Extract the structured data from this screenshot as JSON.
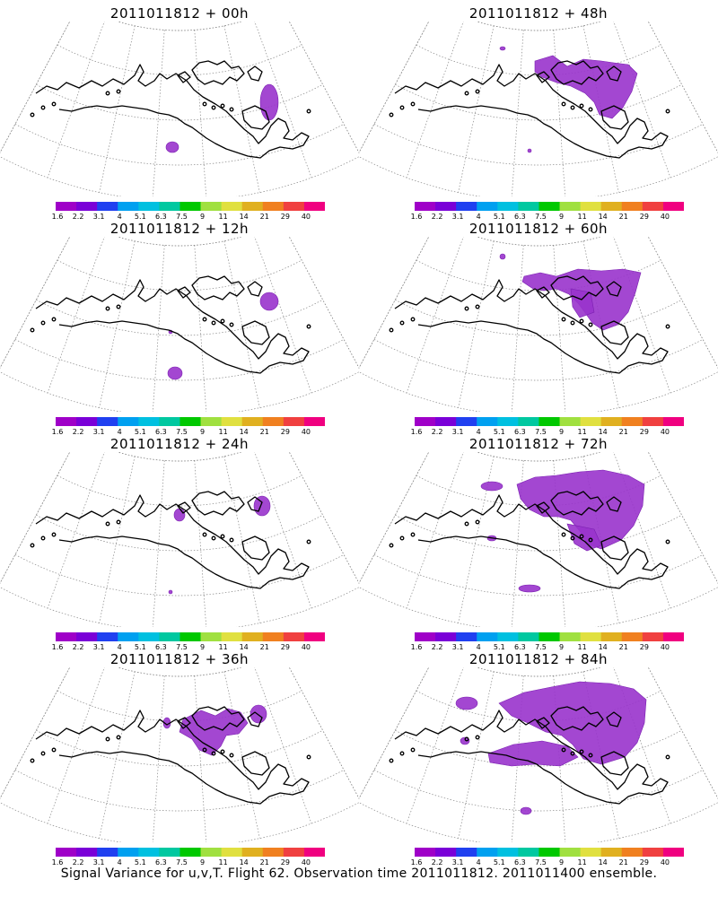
{
  "panels": [
    {
      "title": "2011011812 + 00h",
      "signal": "h00"
    },
    {
      "title": "2011011812 + 48h",
      "signal": "h48"
    },
    {
      "title": "2011011812 + 12h",
      "signal": "h12"
    },
    {
      "title": "2011011812 + 60h",
      "signal": "h60"
    },
    {
      "title": "2011011812 + 24h",
      "signal": "h24"
    },
    {
      "title": "2011011812 + 72h",
      "signal": "h72"
    },
    {
      "title": "2011011812 + 36h",
      "signal": "h36"
    },
    {
      "title": "2011011812 + 84h",
      "signal": "h84"
    }
  ],
  "colorbar": {
    "labels": [
      "1.6",
      "2.2",
      "3.1",
      "4",
      "5.1",
      "6.3",
      "7.5",
      "9",
      "11",
      "14",
      "21",
      "29",
      "40"
    ],
    "colors": [
      "#9f00c8",
      "#7a00d8",
      "#2040f0",
      "#00a0f0",
      "#00c0e0",
      "#00c8a0",
      "#00c800",
      "#a0e040",
      "#e0e040",
      "#e0b020",
      "#f08020",
      "#f04040",
      "#f00080"
    ]
  },
  "footer": "Signal Variance for u,v,T. Flight 62. Observation time 2011011812. 2011011400 ensemble.",
  "colors": {
    "signal": "#9933cc",
    "signal_dark": "#7a1fb0",
    "coast": "#000000",
    "grid": "#888888"
  }
}
